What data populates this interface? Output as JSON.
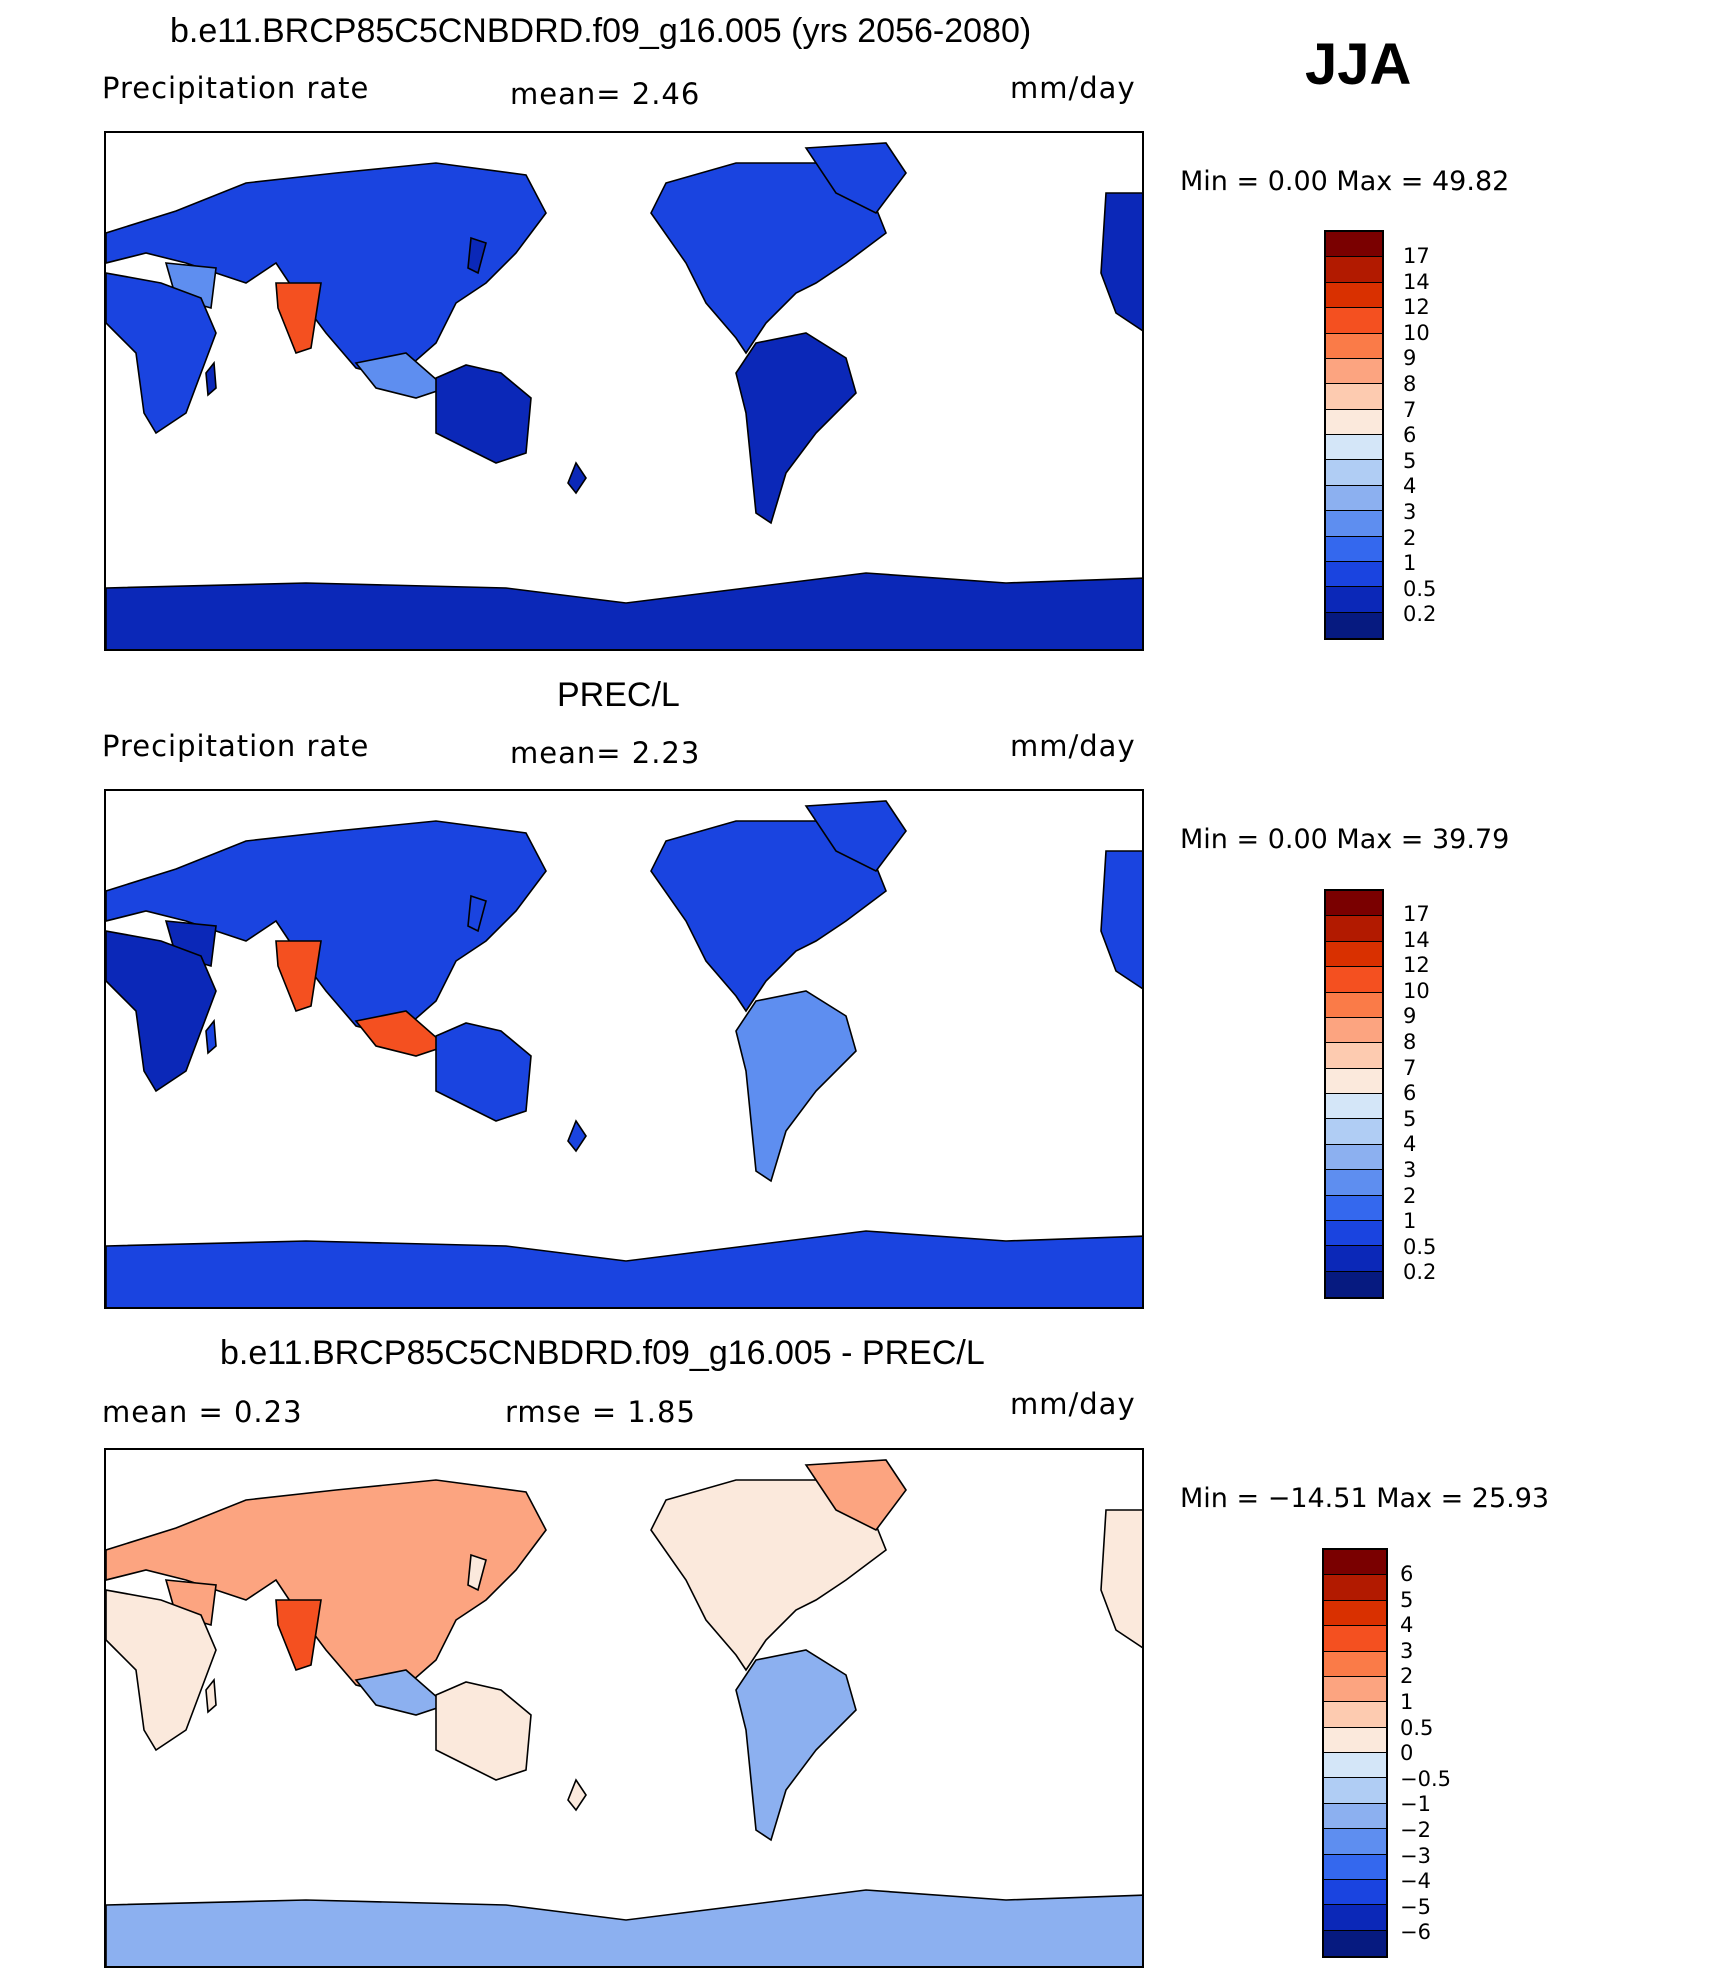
{
  "season": "JJA",
  "panels": [
    {
      "title": "b.e11.BRCP85C5CNBDRD.f09_g16.005 (yrs 2056-2080)",
      "left_label": "Precipitation  rate",
      "mid_label": "mean=    2.46",
      "units": "mm/day",
      "minmax": "Min  =     0.00  Max  =    49.82",
      "colorbar": {
        "labels": [
          "17",
          "14",
          "12",
          "10",
          "9",
          "8",
          "7",
          "6",
          "5",
          "4",
          "3",
          "2",
          "1",
          "0.5",
          "0.2"
        ],
        "colors": [
          "#7a0000",
          "#b21a00",
          "#d93000",
          "#f45020",
          "#fa7b48",
          "#fca480",
          "#fdcbb0",
          "#fbe9dc",
          "#d4e6f8",
          "#b0cdf4",
          "#8cb0f0",
          "#5e8ef0",
          "#3468ee",
          "#1a44e0",
          "#0b28b8",
          "#061a80"
        ]
      }
    },
    {
      "title": "PREC/L",
      "left_label": "Precipitation  rate",
      "mid_label": "mean=    2.23",
      "units": "mm/day",
      "minmax": "Min  =     0.00  Max  =    39.79",
      "colorbar": {
        "labels": [
          "17",
          "14",
          "12",
          "10",
          "9",
          "8",
          "7",
          "6",
          "5",
          "4",
          "3",
          "2",
          "1",
          "0.5",
          "0.2"
        ],
        "colors": [
          "#7a0000",
          "#b21a00",
          "#d93000",
          "#f45020",
          "#fa7b48",
          "#fca480",
          "#fdcbb0",
          "#fbe9dc",
          "#d4e6f8",
          "#b0cdf4",
          "#8cb0f0",
          "#5e8ef0",
          "#3468ee",
          "#1a44e0",
          "#0b28b8",
          "#061a80"
        ]
      }
    },
    {
      "title": "b.e11.BRCP85C5CNBDRD.f09_g16.005 - PREC/L",
      "left_label": "mean  =     0.23",
      "mid_label": "rmse  =     1.85",
      "units": "mm/day",
      "minmax": "Min  = −14.51  Max  =    25.93",
      "colorbar": {
        "labels": [
          "6",
          "5",
          "4",
          "3",
          "2",
          "1",
          "0.5",
          "0",
          "−0.5",
          "−1",
          "−2",
          "−3",
          "−4",
          "−5",
          "−6"
        ],
        "colors": [
          "#7a0000",
          "#b21a00",
          "#d93000",
          "#f45020",
          "#fa7b48",
          "#fca480",
          "#fdcbb0",
          "#fbe9dc",
          "#d4e6f8",
          "#b0cdf4",
          "#8cb0f0",
          "#5e8ef0",
          "#3468ee",
          "#1a44e0",
          "#0b28b8",
          "#061a80"
        ]
      }
    }
  ],
  "map_colors": {
    "dry": "#0b28b8",
    "wet": "#1a44e0",
    "moderate": "#5e8ef0",
    "monsoon": "#f45020",
    "diff_pos": "#fca480",
    "diff_neg": "#8cb0f0",
    "diff_light": "#fbe9dc"
  }
}
